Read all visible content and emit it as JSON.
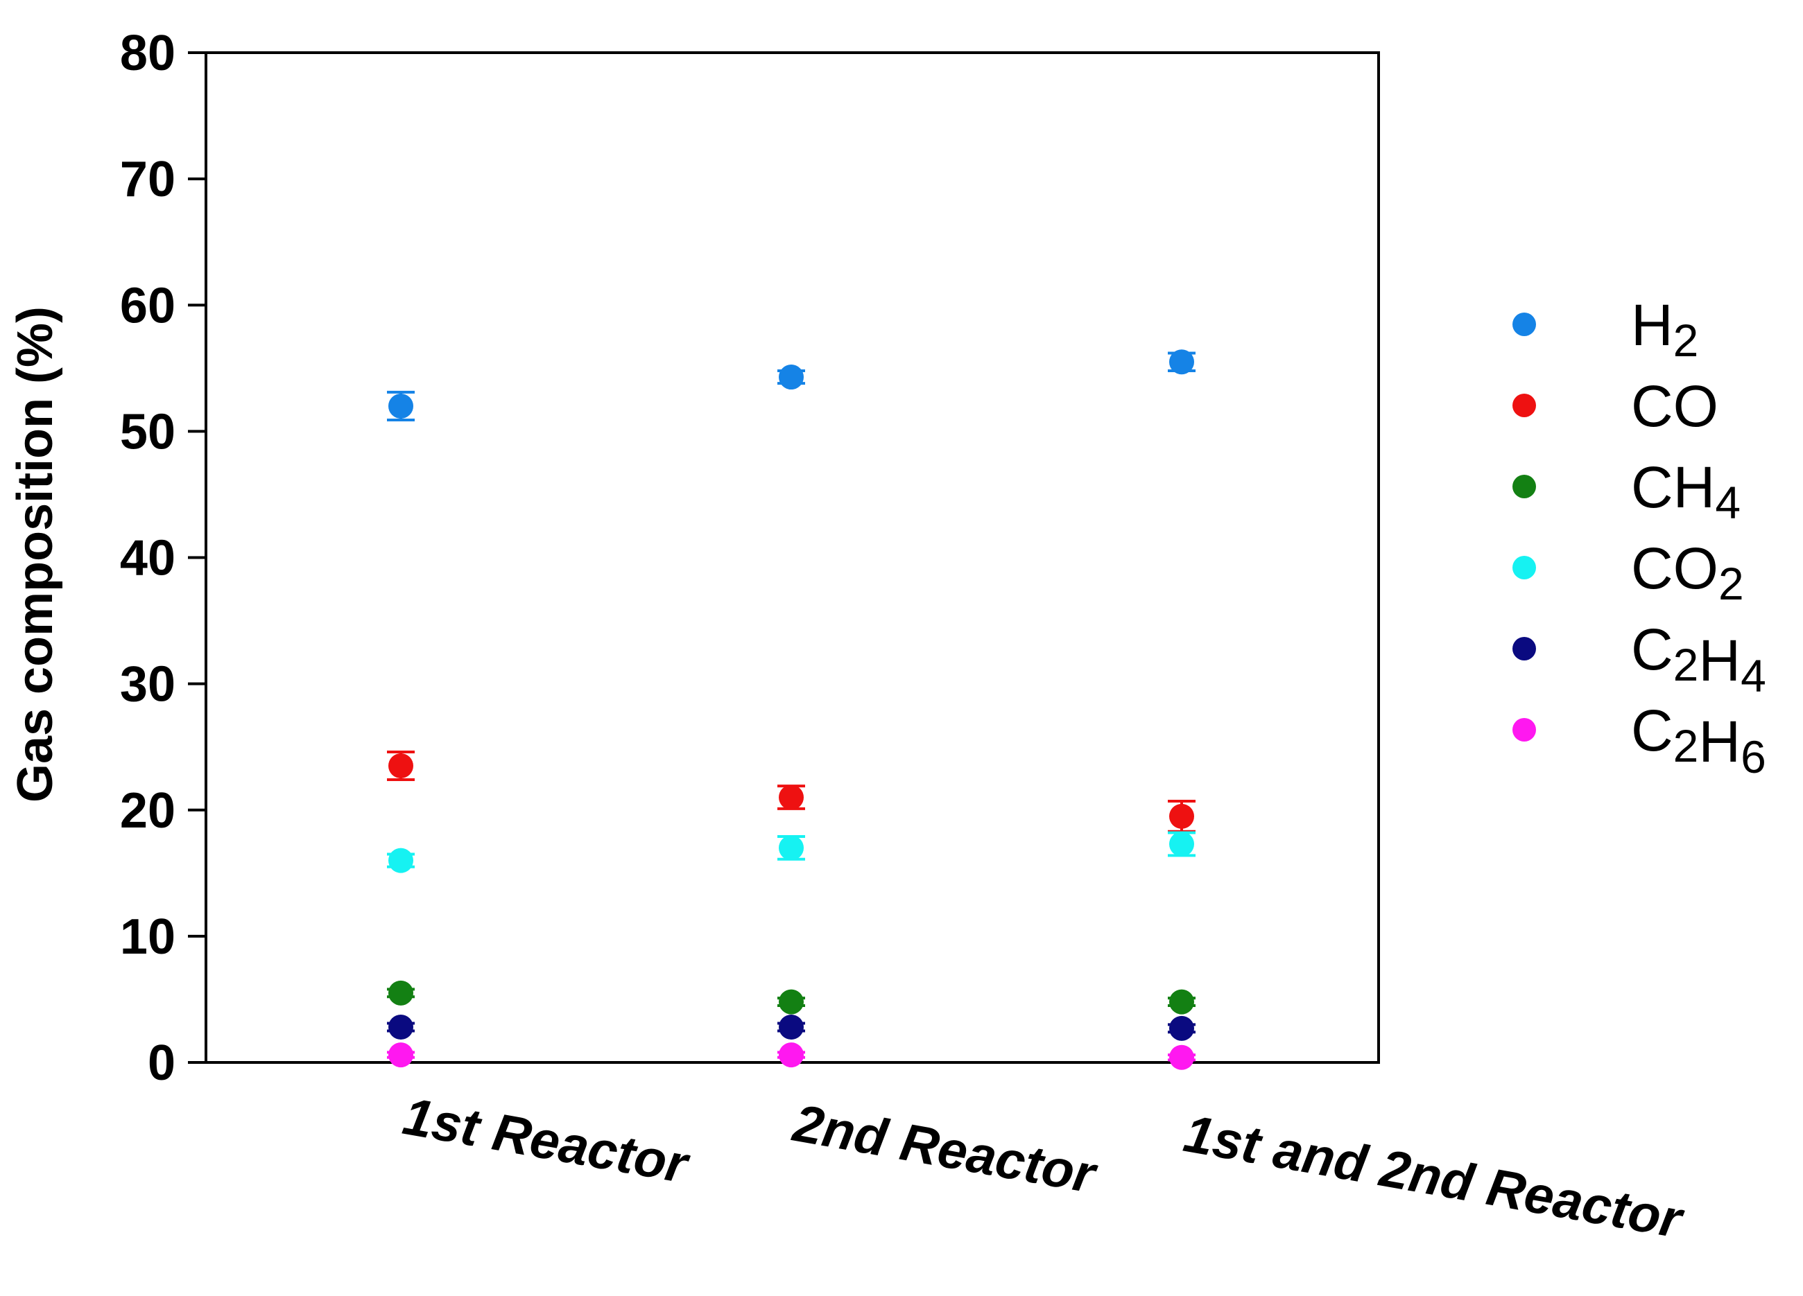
{
  "chart_data": {
    "type": "scatter",
    "title": "",
    "xlabel": "",
    "ylabel": "Gas composition (%)",
    "ylim": [
      0,
      80
    ],
    "yticks": [
      0,
      10,
      20,
      30,
      40,
      50,
      60,
      70,
      80
    ],
    "categories": [
      "1st Reactor",
      "2nd Reactor",
      "1st and 2nd Reactor"
    ],
    "grid": false,
    "legend_position": "right",
    "series": [
      {
        "name": "H2",
        "label_main": "H",
        "label_sub": "2",
        "color": "#1583e6",
        "values": [
          52.0,
          54.3,
          55.5
        ],
        "errors": [
          1.1,
          0.5,
          0.7
        ]
      },
      {
        "name": "CO",
        "label_main": "CO",
        "label_sub": "",
        "color": "#ee1111",
        "values": [
          23.5,
          21.0,
          19.5
        ],
        "errors": [
          1.1,
          0.9,
          1.2
        ]
      },
      {
        "name": "CH4",
        "label_main": "CH",
        "label_sub": "4",
        "color": "#138013",
        "values": [
          5.5,
          4.8,
          4.8
        ],
        "errors": [
          0.3,
          0.3,
          0.3
        ]
      },
      {
        "name": "CO2",
        "label_main": "CO",
        "label_sub": "2",
        "color": "#16f2f2",
        "values": [
          16.0,
          17.0,
          17.3
        ],
        "errors": [
          0.5,
          0.9,
          0.9
        ]
      },
      {
        "name": "C2H4",
        "label_main": "C2H",
        "label_sub": "4",
        "color": "#0a0a80",
        "values": [
          2.8,
          2.8,
          2.7
        ],
        "errors": [
          0.3,
          0.3,
          0.3
        ]
      },
      {
        "name": "C2H6",
        "label_main": "C2H",
        "label_sub": "6",
        "color": "#ff18f0",
        "values": [
          0.6,
          0.6,
          0.4
        ],
        "errors": [
          0.2,
          0.2,
          0.2
        ]
      }
    ]
  }
}
